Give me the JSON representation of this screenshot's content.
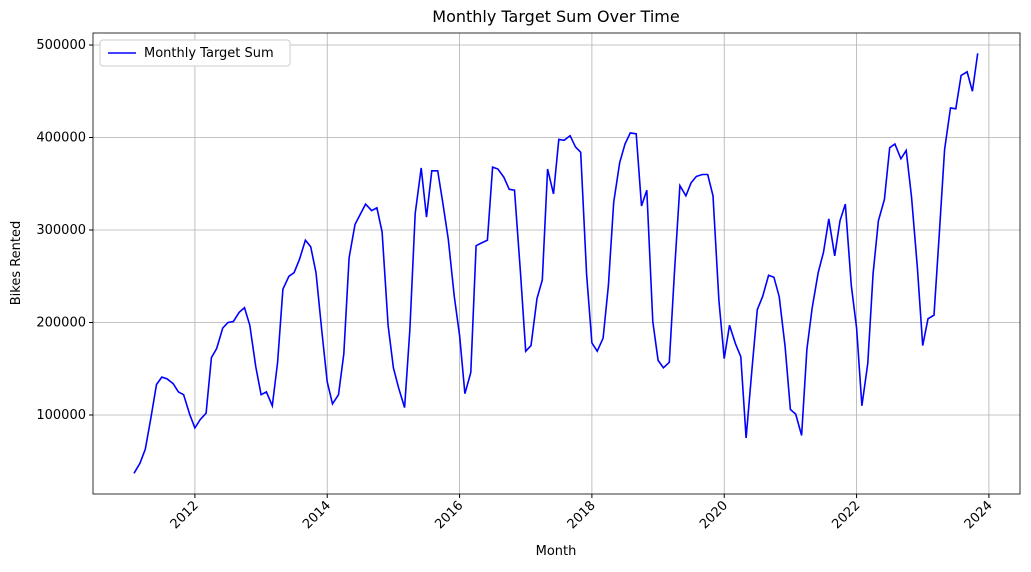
{
  "chart_data": {
    "type": "line",
    "title": "Monthly Target Sum Over Time",
    "x_label": "Month",
    "y_label": "Bikes Rented",
    "x": [
      2011.08,
      2011.17,
      2011.25,
      2011.33,
      2011.42,
      2011.5,
      2011.58,
      2011.67,
      2011.75,
      2011.83,
      2011.92,
      2012,
      2012.08,
      2012.17,
      2012.25,
      2012.33,
      2012.42,
      2012.5,
      2012.58,
      2012.67,
      2012.75,
      2012.83,
      2012.92,
      2013,
      2013.08,
      2013.17,
      2013.25,
      2013.33,
      2013.42,
      2013.5,
      2013.58,
      2013.67,
      2013.75,
      2013.83,
      2013.92,
      2014,
      2014.08,
      2014.17,
      2014.25,
      2014.33,
      2014.42,
      2014.5,
      2014.58,
      2014.67,
      2014.75,
      2014.83,
      2014.92,
      2015,
      2015.08,
      2015.17,
      2015.25,
      2015.33,
      2015.42,
      2015.5,
      2015.58,
      2015.67,
      2015.75,
      2015.83,
      2015.92,
      2016,
      2016.08,
      2016.17,
      2016.25,
      2016.33,
      2016.42,
      2016.5,
      2016.58,
      2016.67,
      2016.75,
      2016.83,
      2016.92,
      2017,
      2017.08,
      2017.17,
      2017.25,
      2017.33,
      2017.42,
      2017.5,
      2017.58,
      2017.67,
      2017.75,
      2017.83,
      2017.92,
      2018,
      2018.08,
      2018.17,
      2018.25,
      2018.33,
      2018.42,
      2018.5,
      2018.58,
      2018.67,
      2018.75,
      2018.83,
      2018.92,
      2019,
      2019.08,
      2019.17,
      2019.25,
      2019.33,
      2019.42,
      2019.5,
      2019.58,
      2019.67,
      2019.75,
      2019.83,
      2019.92,
      2020,
      2020.08,
      2020.17,
      2020.25,
      2020.33,
      2020.42,
      2020.5,
      2020.58,
      2020.67,
      2020.75,
      2020.83,
      2020.92,
      2021,
      2021.08,
      2021.17,
      2021.25,
      2021.33,
      2021.42,
      2021.5,
      2021.58,
      2021.67,
      2021.75,
      2021.83,
      2021.92,
      2022,
      2022.08,
      2022.17,
      2022.25,
      2022.33,
      2022.42,
      2022.5,
      2022.58,
      2022.67,
      2022.75,
      2022.83,
      2022.92,
      2023,
      2023.08,
      2023.17,
      2023.25,
      2023.33,
      2023.42,
      2023.5,
      2023.58,
      2023.67,
      2023.75,
      2023.83
    ],
    "series": [
      {
        "name": "Monthly Target Sum",
        "color": "#0000ff",
        "values": [
          37000,
          48000,
          63000,
          95000,
          133000,
          141000,
          139000,
          134000,
          125000,
          122000,
          101000,
          86000,
          95000,
          102000,
          162000,
          172000,
          194000,
          200000,
          201000,
          211000,
          216000,
          197000,
          152000,
          122000,
          125000,
          110000,
          157000,
          236000,
          250000,
          254000,
          268000,
          289000,
          282000,
          254000,
          190000,
          136000,
          112000,
          122000,
          166000,
          270000,
          306000,
          317000,
          328000,
          321000,
          324000,
          298000,
          197000,
          151000,
          129000,
          108000,
          193000,
          318000,
          367000,
          314000,
          364000,
          364000,
          328000,
          290000,
          228000,
          186000,
          123000,
          146000,
          283000,
          286000,
          289000,
          368000,
          366000,
          357000,
          344000,
          343000,
          255000,
          169000,
          175000,
          226000,
          246000,
          366000,
          339000,
          398000,
          397000,
          402000,
          390000,
          384000,
          252000,
          178000,
          169000,
          183000,
          240000,
          330000,
          373000,
          393000,
          405000,
          404000,
          326000,
          343000,
          201000,
          159000,
          151000,
          157000,
          257000,
          348000,
          337000,
          351000,
          358000,
          360000,
          360000,
          337000,
          224000,
          161000,
          197000,
          177000,
          163000,
          75000,
          150000,
          214000,
          228000,
          251000,
          249000,
          228000,
          174000,
          106000,
          101000,
          78000,
          171000,
          216000,
          254000,
          276000,
          312000,
          272000,
          310000,
          328000,
          240000,
          194000,
          110000,
          156000,
          253000,
          310000,
          333000,
          389000,
          393000,
          377000,
          386000,
          336000,
          259000,
          175000,
          204000,
          208000,
          296000,
          387000,
          432000,
          431000,
          467000,
          471000,
          450000,
          491000
        ]
      }
    ],
    "xlim": [
      2010.46,
      2024.47
    ],
    "ylim": [
      14600,
      513000
    ],
    "xticks": [
      2012,
      2014,
      2016,
      2018,
      2020,
      2022,
      2024
    ],
    "yticks": [
      100000,
      200000,
      300000,
      400000,
      500000
    ],
    "grid": true,
    "legend": "upper left"
  }
}
